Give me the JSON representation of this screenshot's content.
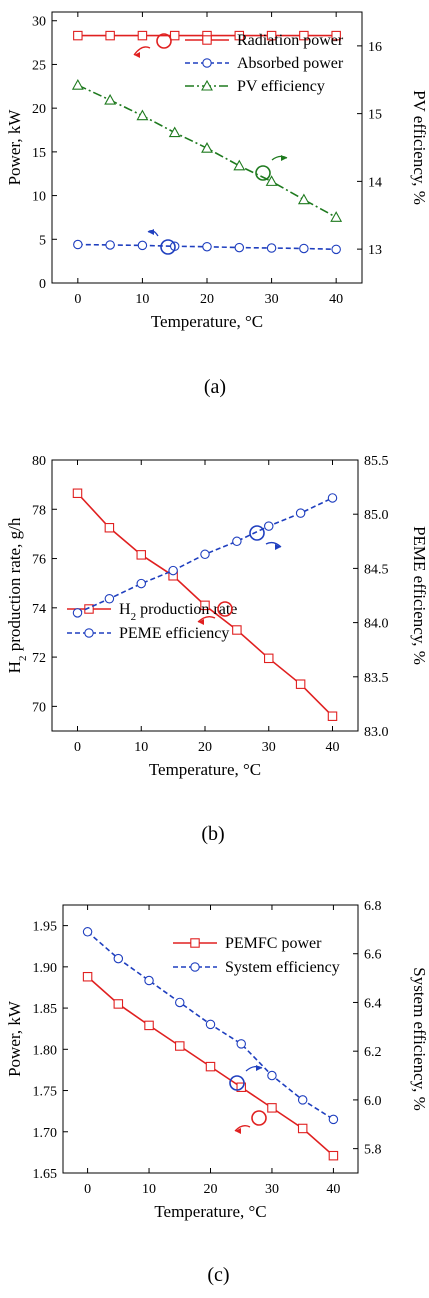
{
  "chart_data": [
    {
      "type": "line",
      "caption": "(a)",
      "xlabel": "Temperature, °C",
      "ylabel": "Power, kW",
      "ylabel_right": "PV efficiency, %",
      "xlim": [
        -4,
        44
      ],
      "ylim": [
        0,
        31
      ],
      "ylim_right": [
        12.5,
        16.5
      ],
      "xticks": [
        "0",
        "10",
        "20",
        "30",
        "40"
      ],
      "yticks": [
        "0",
        "5",
        "10",
        "15",
        "20",
        "25",
        "30"
      ],
      "yticks_right": [
        "13",
        "14",
        "15",
        "16"
      ],
      "x": [
        0,
        5,
        10,
        15,
        20,
        25,
        30,
        35,
        40
      ],
      "legend_position": "top-right",
      "grid": false,
      "series": [
        {
          "name": "Radiation power",
          "axis": "left",
          "color": "#e02020",
          "marker": "square",
          "dash": "solid",
          "values": [
            28.3,
            28.3,
            28.3,
            28.3,
            28.3,
            28.3,
            28.3,
            28.3,
            28.3
          ]
        },
        {
          "name": "Absorbed power",
          "axis": "left",
          "color": "#1f3fbf",
          "marker": "circle",
          "dash": "dash",
          "values": [
            4.4,
            4.35,
            4.3,
            4.2,
            4.15,
            4.05,
            4.0,
            3.95,
            3.85
          ]
        },
        {
          "name": "PV efficiency",
          "axis": "right",
          "color": "#1e7a1e",
          "marker": "triangle",
          "dash": "dashdot",
          "values": [
            15.42,
            15.2,
            14.97,
            14.72,
            14.49,
            14.23,
            14.0,
            13.73,
            13.47
          ]
        }
      ]
    },
    {
      "type": "line",
      "caption": "(b)",
      "xlabel": "Temperature, °C",
      "ylabel_parts": [
        "H",
        "2",
        " production rate, g/h"
      ],
      "ylabel_right": "PEME efficiency, %",
      "xlim": [
        -4,
        44
      ],
      "ylim": [
        69,
        80
      ],
      "ylim_right": [
        83,
        85.5
      ],
      "xticks": [
        "0",
        "10",
        "20",
        "30",
        "40"
      ],
      "yticks": [
        "70",
        "72",
        "74",
        "76",
        "78",
        "80"
      ],
      "yticks_right": [
        "83.0",
        "83.5",
        "84.0",
        "84.5",
        "85.0",
        "85.5"
      ],
      "x": [
        0,
        5,
        10,
        15,
        20,
        25,
        30,
        35,
        40
      ],
      "legend_position": "bottom-left",
      "grid": false,
      "series": [
        {
          "name_parts": [
            "H",
            "2",
            " production rate"
          ],
          "axis": "left",
          "color": "#e02020",
          "marker": "square",
          "dash": "solid",
          "values": [
            78.65,
            77.25,
            76.15,
            75.3,
            74.1,
            73.1,
            71.95,
            70.9,
            69.6
          ]
        },
        {
          "name": "PEME efficiency",
          "axis": "right",
          "color": "#1f3fbf",
          "marker": "circle",
          "dash": "dash",
          "values": [
            84.09,
            84.22,
            84.36,
            84.48,
            84.63,
            84.75,
            84.89,
            85.01,
            85.15
          ]
        }
      ]
    },
    {
      "type": "line",
      "caption": "(c)",
      "xlabel": "Temperature, °C",
      "ylabel": "Power, kW",
      "ylabel_right": "System efficiency, %",
      "xlim": [
        -4,
        44
      ],
      "ylim": [
        1.65,
        1.975
      ],
      "ylim_right": [
        5.7,
        6.8
      ],
      "xticks": [
        "0",
        "10",
        "20",
        "30",
        "40"
      ],
      "yticks": [
        "1.65",
        "1.70",
        "1.75",
        "1.80",
        "1.85",
        "1.90",
        "1.95"
      ],
      "yticks_right": [
        "5.8",
        "6.0",
        "6.2",
        "6.4",
        "6.6",
        "6.8"
      ],
      "x": [
        0,
        5,
        10,
        15,
        20,
        25,
        30,
        35,
        40
      ],
      "legend_position": "top-right",
      "grid": false,
      "series": [
        {
          "name": "PEMFC power",
          "axis": "left",
          "color": "#e02020",
          "marker": "square",
          "dash": "solid",
          "values": [
            1.888,
            1.855,
            1.829,
            1.804,
            1.779,
            1.754,
            1.729,
            1.704,
            1.671
          ]
        },
        {
          "name": "System efficiency",
          "axis": "right",
          "color": "#1f3fbf",
          "marker": "circle",
          "dash": "dash",
          "values": [
            6.69,
            6.58,
            6.49,
            6.4,
            6.31,
            6.23,
            6.1,
            6.0,
            5.92
          ]
        }
      ]
    }
  ]
}
